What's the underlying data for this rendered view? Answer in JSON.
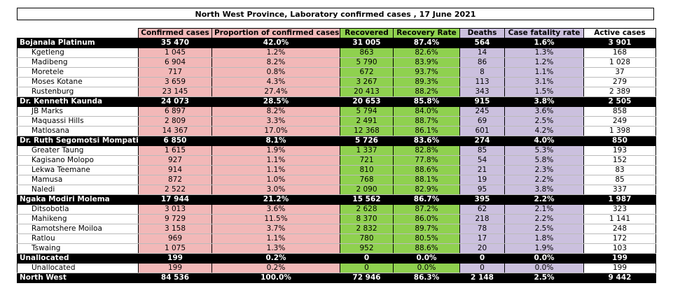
{
  "title": "North West Province, Laboratory confirmed cases , 17 June 2021",
  "columns": [
    "Confirmed cases",
    "Proportion of confirmed cases",
    "Recovered",
    "Recovery Rate",
    "Deaths",
    "Case fatality rate",
    "Active cases"
  ],
  "colors": {
    "confirmed": "#f2b8b8",
    "recovered": "#8fd14f",
    "deaths": "#cbc0de",
    "district_row": "#000000"
  },
  "groups": [
    {
      "district": [
        "Bojanala Platinum",
        "35 470",
        "42.0%",
        "31 005",
        "87.4%",
        "564",
        "1.6%",
        "3 901"
      ],
      "subs": [
        [
          "Kgetleng",
          "1 045",
          "1.2%",
          "863",
          "82.6%",
          "14",
          "1.3%",
          "168"
        ],
        [
          "Madibeng",
          "6 904",
          "8.2%",
          "5 790",
          "83.9%",
          "86",
          "1.2%",
          "1 028"
        ],
        [
          "Moretele",
          "717",
          "0.8%",
          "672",
          "93.7%",
          "8",
          "1.1%",
          "37"
        ],
        [
          "Moses Kotane",
          "3 659",
          "4.3%",
          "3 267",
          "89.3%",
          "113",
          "3.1%",
          "279"
        ],
        [
          "Rustenburg",
          "23 145",
          "27.4%",
          "20 413",
          "88.2%",
          "343",
          "1.5%",
          "2 389"
        ]
      ]
    },
    {
      "district": [
        "Dr. Kenneth Kaunda",
        "24 073",
        "28.5%",
        "20 653",
        "85.8%",
        "915",
        "3.8%",
        "2 505"
      ],
      "subs": [
        [
          "JB Marks",
          "6 897",
          "8.2%",
          "5 794",
          "84.0%",
          "245",
          "3.6%",
          "858"
        ],
        [
          "Maquassi Hills",
          "2 809",
          "3.3%",
          "2 491",
          "88.7%",
          "69",
          "2.5%",
          "249"
        ],
        [
          "Matlosana",
          "14 367",
          "17.0%",
          "12 368",
          "86.1%",
          "601",
          "4.2%",
          "1 398"
        ]
      ]
    },
    {
      "district": [
        "Dr. Ruth Segomotsi Mompati",
        "6 850",
        "8.1%",
        "5 726",
        "83.6%",
        "274",
        "4.0%",
        "850"
      ],
      "subs": [
        [
          "Greater Taung",
          "1 615",
          "1.9%",
          "1 337",
          "82.8%",
          "85",
          "5.3%",
          "193"
        ],
        [
          "Kagisano Molopo",
          "927",
          "1.1%",
          "721",
          "77.8%",
          "54",
          "5.8%",
          "152"
        ],
        [
          "Lekwa Teemane",
          "914",
          "1.1%",
          "810",
          "88.6%",
          "21",
          "2.3%",
          "83"
        ],
        [
          "Mamusa",
          "872",
          "1.0%",
          "768",
          "88.1%",
          "19",
          "2.2%",
          "85"
        ],
        [
          "Naledi",
          "2 522",
          "3.0%",
          "2 090",
          "82.9%",
          "95",
          "3.8%",
          "337"
        ]
      ]
    },
    {
      "district": [
        "Ngaka Modiri Molema",
        "17 944",
        "21.2%",
        "15 562",
        "86.7%",
        "395",
        "2.2%",
        "1 987"
      ],
      "subs": [
        [
          "Ditsobotla",
          "3 013",
          "3.6%",
          "2 628",
          "87.2%",
          "62",
          "2.1%",
          "323"
        ],
        [
          "Mahikeng",
          "9 729",
          "11.5%",
          "8 370",
          "86.0%",
          "218",
          "2.2%",
          "1 141"
        ],
        [
          "Ramotshere Moiloa",
          "3 158",
          "3.7%",
          "2 832",
          "89.7%",
          "78",
          "2.5%",
          "248"
        ],
        [
          "Ratlou",
          "969",
          "1.1%",
          "780",
          "80.5%",
          "17",
          "1.8%",
          "172"
        ],
        [
          "Tswaing",
          "1 075",
          "1.3%",
          "952",
          "88.6%",
          "20",
          "1.9%",
          "103"
        ]
      ]
    },
    {
      "district": [
        "Unallocated",
        "199",
        "0.2%",
        "0",
        "0.0%",
        "0",
        "0.0%",
        "199"
      ],
      "subs": [
        [
          "Unallocated",
          "199",
          "0.2%",
          "0",
          "0.0%",
          "0",
          "0.0%",
          "199"
        ]
      ]
    }
  ],
  "total": [
    "North West",
    "84 536",
    "100.0%",
    "72 946",
    "86.3%",
    "2 148",
    "2.5%",
    "9 442"
  ]
}
